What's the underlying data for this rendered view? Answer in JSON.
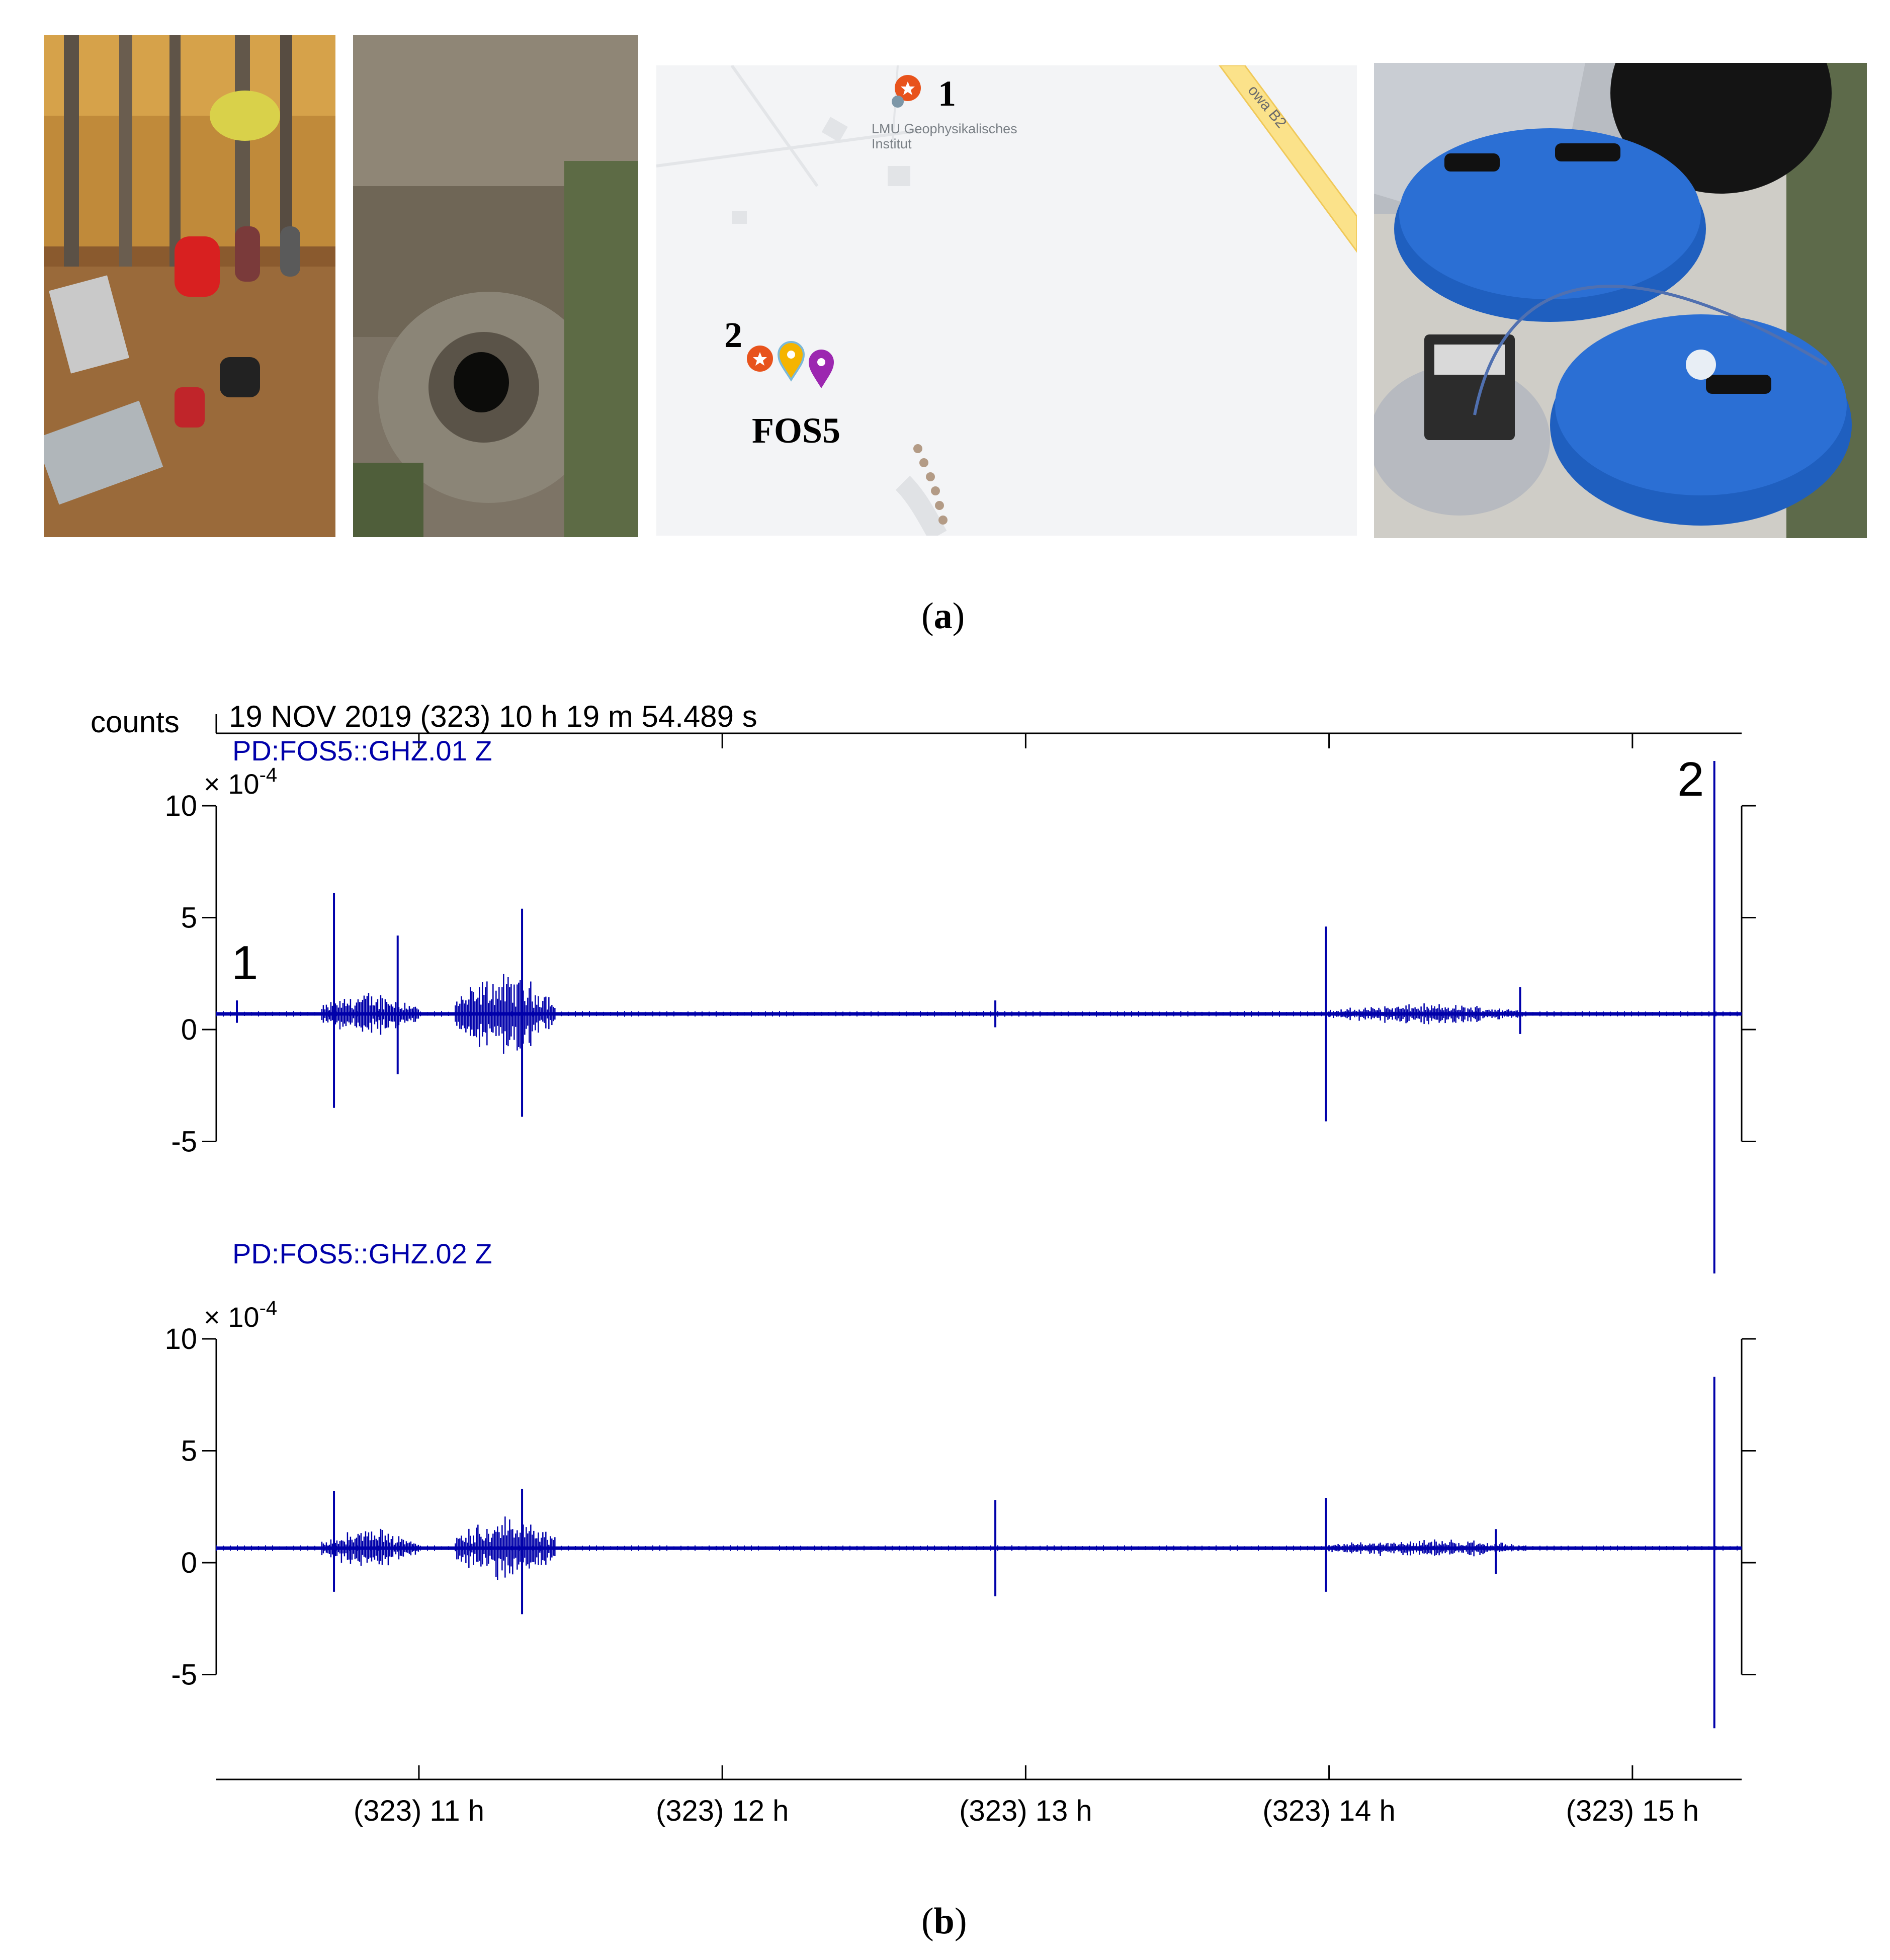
{
  "panel_a": {
    "caption_open": "(",
    "caption_letter": "a",
    "caption_close": ")",
    "map": {
      "marker1_label": "1",
      "institute_name_line1": "LMU Geophysikalisches",
      "institute_name_line2": "Institut",
      "road_label": "owa B2",
      "marker2_label": "2",
      "station_label": "FOS5",
      "colors": {
        "poi_orange": "#e8531c",
        "pin_yellow": "#f5b400",
        "pin_purple": "#9c27b0",
        "road": "#fbe28a",
        "background": "#f3f4f6"
      }
    }
  },
  "panel_b": {
    "caption_open": "(",
    "caption_letter": "b",
    "caption_close": ")",
    "ylabel_units": "counts",
    "header_time": "19 NOV 2019  (323)  10 h 19 m 54.489 s",
    "label_event_1": "1",
    "label_event_2": "2",
    "trace_color": "#0000aa",
    "x_tick_labels": [
      "(323) 11 h",
      "(323) 12 h",
      "(323) 13 h",
      "(323) 14 h",
      "(323) 15 h"
    ]
  },
  "chart_data": [
    {
      "type": "line",
      "series_name": "PD:FOS5::GHZ.01 Z",
      "scale_label": "× 10",
      "scale_exp": "-4",
      "ylabel": "counts",
      "ylim": [
        -5,
        10
      ],
      "y_ticks": [
        10,
        5,
        0,
        -5
      ],
      "y_tick_labels": [
        "10",
        "5",
        "0",
        "-5"
      ],
      "xlim_hours": [
        10.332,
        15.36
      ],
      "x_ticks_hours": [
        11,
        12,
        13,
        14,
        15
      ],
      "baseline": 0.7,
      "spikes": [
        {
          "t": 10.4,
          "top": 1.3,
          "bottom": 0.3
        },
        {
          "t": 10.72,
          "top": 6.1,
          "bottom": -3.5
        },
        {
          "t": 10.93,
          "top": 4.2,
          "bottom": -2.0
        },
        {
          "t": 11.34,
          "top": 5.4,
          "bottom": -3.9
        },
        {
          "t": 12.9,
          "top": 1.3,
          "bottom": 0.1
        },
        {
          "t": 13.99,
          "top": 4.6,
          "bottom": -4.1
        },
        {
          "t": 14.63,
          "top": 1.9,
          "bottom": -0.2
        },
        {
          "t": 15.27,
          "top": 12.0,
          "bottom": -10.9
        }
      ],
      "bursts": [
        {
          "t0": 10.68,
          "t1": 11.0,
          "amp": 1.1
        },
        {
          "t0": 11.12,
          "t1": 11.45,
          "amp": 2.0
        },
        {
          "t0": 14.0,
          "t1": 14.65,
          "amp": 0.5
        }
      ]
    },
    {
      "type": "line",
      "series_name": "PD:FOS5::GHZ.02 Z",
      "scale_label": "× 10",
      "scale_exp": "-4",
      "ylabel": "counts",
      "ylim": [
        -5,
        10
      ],
      "y_ticks": [
        10,
        5,
        0,
        -5
      ],
      "y_tick_labels": [
        "10",
        "5",
        "0",
        "-5"
      ],
      "xlim_hours": [
        10.332,
        15.36
      ],
      "x_ticks_hours": [
        11,
        12,
        13,
        14,
        15
      ],
      "baseline": 0.65,
      "spikes": [
        {
          "t": 10.72,
          "top": 3.2,
          "bottom": -1.3
        },
        {
          "t": 11.34,
          "top": 3.3,
          "bottom": -2.3
        },
        {
          "t": 12.9,
          "top": 2.8,
          "bottom": -1.5
        },
        {
          "t": 13.99,
          "top": 2.9,
          "bottom": -1.3
        },
        {
          "t": 14.55,
          "top": 1.5,
          "bottom": -0.5
        },
        {
          "t": 15.27,
          "top": 8.3,
          "bottom": -7.4
        }
      ],
      "bursts": [
        {
          "t0": 10.68,
          "t1": 11.0,
          "amp": 1.0
        },
        {
          "t0": 11.12,
          "t1": 11.45,
          "amp": 1.6
        },
        {
          "t0": 14.0,
          "t1": 14.65,
          "amp": 0.45
        }
      ]
    }
  ]
}
